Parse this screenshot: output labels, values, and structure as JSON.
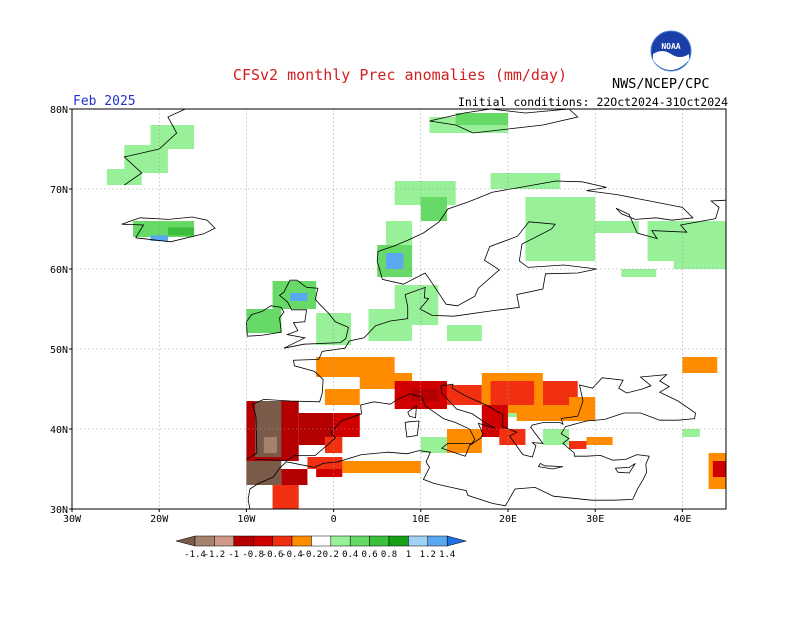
{
  "title": "CFSv2 monthly Prec anomalies (mm/day)",
  "valid_month": "Feb 2025",
  "initial_conditions": "Initial conditions: 22Oct2024-31Oct2024",
  "agency": "NWS/NCEP/CPC",
  "logo_text": "NOAA",
  "lat_labels": [
    "80N",
    "70N",
    "60N",
    "50N",
    "40N",
    "30N"
  ],
  "lon_labels": [
    "30W",
    "20W",
    "10W",
    "0",
    "10E",
    "20E",
    "30E",
    "40E"
  ],
  "legend": {
    "bins": [
      {
        "color": "#7a5a48"
      },
      {
        "color": "#a5826e"
      },
      {
        "color": "#d09a8a"
      },
      {
        "color": "#b40000"
      },
      {
        "color": "#d00000"
      },
      {
        "color": "#f03010"
      },
      {
        "color": "#ff8c00"
      },
      {
        "color": "#ffffff"
      },
      {
        "color": "#98f098"
      },
      {
        "color": "#66d966"
      },
      {
        "color": "#3cbf3c"
      },
      {
        "color": "#16a016"
      },
      {
        "color": "#a0d2f5"
      },
      {
        "color": "#5aa8f0"
      },
      {
        "color": "#2070e0"
      }
    ],
    "tick_labels": [
      "-1.4",
      "-1.2",
      "-1",
      "-0.8",
      "-0.6",
      "-0.4",
      "-0.2",
      "0.2",
      "0.4",
      "0.6",
      "0.8",
      "1",
      "1.2",
      "1.4"
    ]
  },
  "colors": {
    "title": "#d22020",
    "month": "#2233cc",
    "wet_light": "#98f098",
    "wet_mid": "#66d966",
    "wet_dark": "#3cbf3c",
    "wet_blue": "#5aa8f0",
    "dry_orange": "#ff8c00",
    "dry_redorange": "#f03010",
    "dry_red": "#d00000",
    "dry_darkred": "#b40000",
    "dry_brown": "#7a5a48",
    "dry_tan": "#a5826e"
  }
}
